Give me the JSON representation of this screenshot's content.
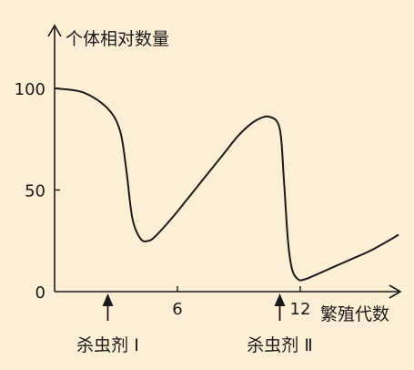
{
  "colors": {
    "background": "#fcefd6",
    "ink": "#1a1a1a"
  },
  "chart_data": {
    "type": "line",
    "ylabel": "个体相对数量",
    "xlabel": "繁殖代数",
    "xlim": [
      0,
      16.8
    ],
    "ylim": [
      0,
      130
    ],
    "x_ticks": [
      {
        "value": 6,
        "label": "6"
      },
      {
        "value": 12,
        "label": "12"
      }
    ],
    "y_ticks": [
      {
        "value": 0,
        "label": "0"
      },
      {
        "value": 50,
        "label": "50"
      },
      {
        "value": 100,
        "label": "100"
      }
    ],
    "grid": false,
    "series": [
      {
        "x": [
          0,
          1.4,
          2.6,
          3.2,
          3.5,
          3.8,
          4.2,
          4.6,
          5.0,
          5.8,
          6.6,
          7.4,
          8.2,
          9.0,
          9.8,
          10.5,
          11.0,
          11.2,
          11.4,
          11.6,
          11.9,
          12.2,
          12.7,
          13.6,
          14.5,
          15.4,
          16.3,
          16.8
        ],
        "y": [
          100,
          98,
          90,
          79,
          60,
          36,
          26,
          25,
          28,
          37,
          47,
          57,
          67,
          77,
          84,
          86,
          80,
          55,
          25,
          11,
          6,
          6,
          8,
          12,
          16,
          20,
          25,
          28
        ]
      }
    ],
    "annotations": [
      {
        "text": "杀虫剂 Ⅰ",
        "x": 2.6
      },
      {
        "text": "杀虫剂 Ⅱ",
        "x": 11.0
      }
    ]
  }
}
